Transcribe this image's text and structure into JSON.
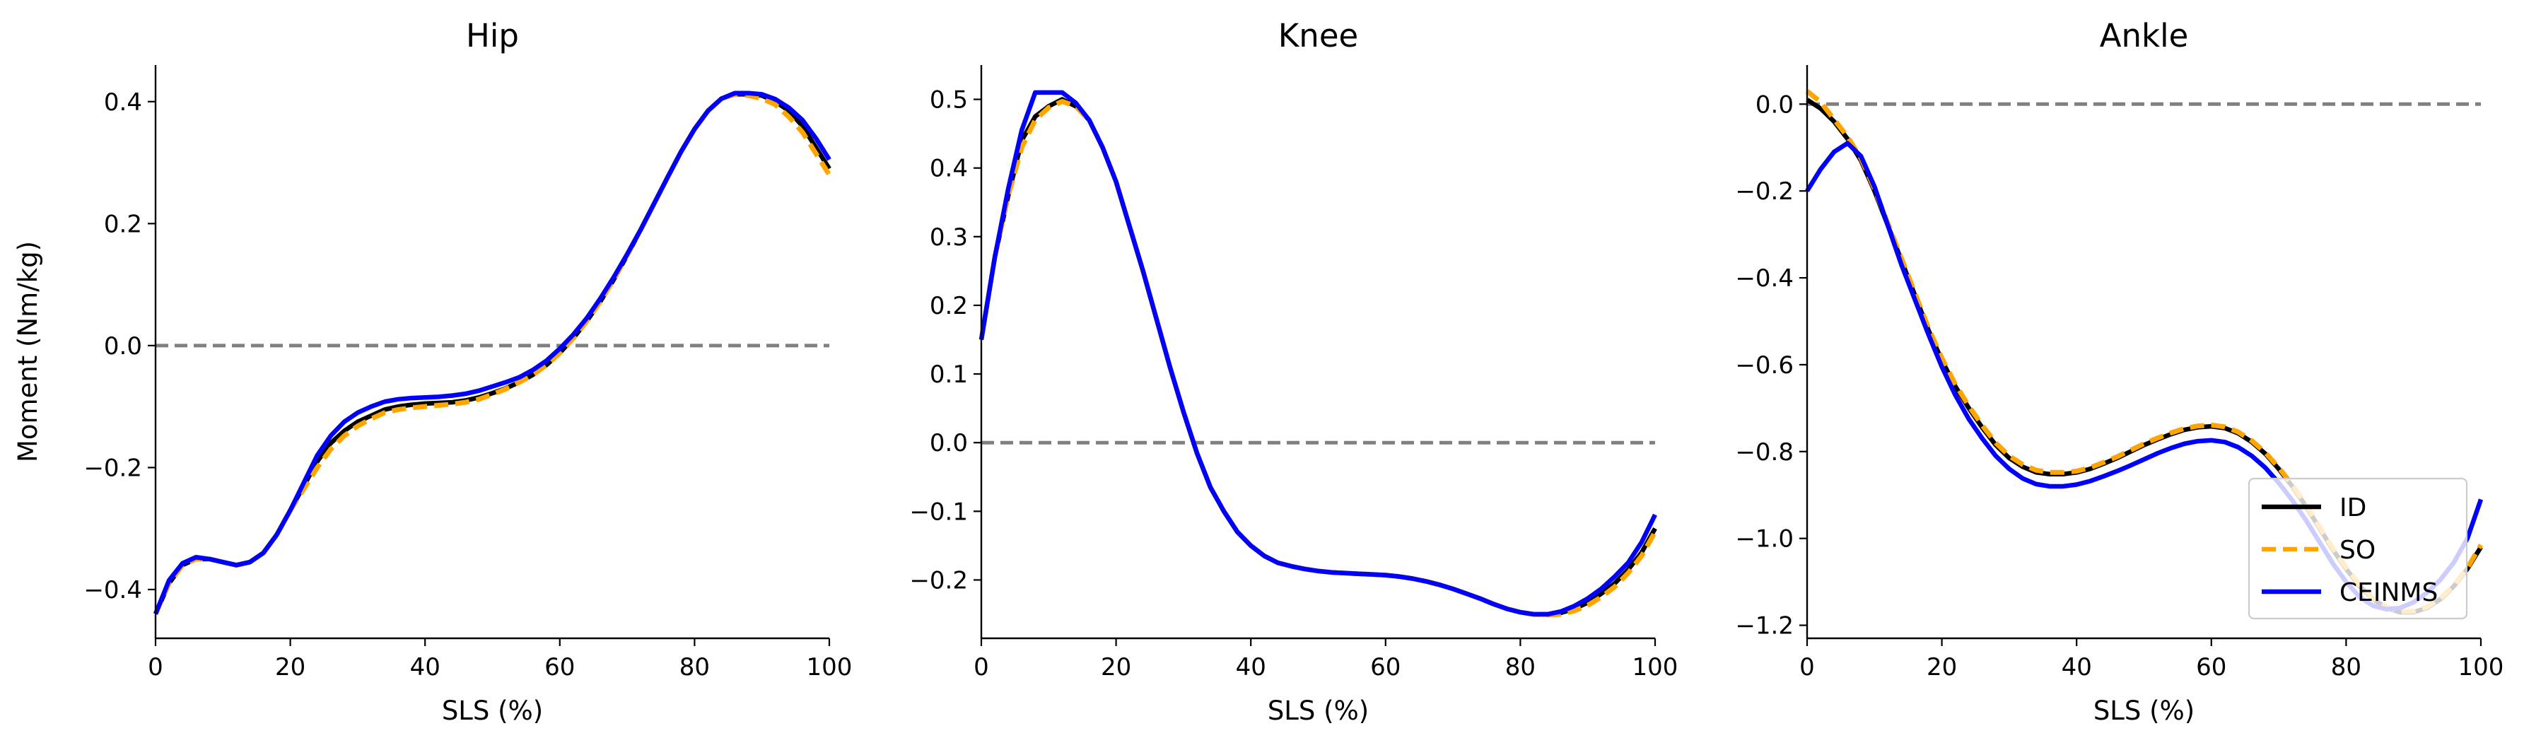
{
  "chart_data": [
    {
      "type": "line",
      "title": "Hip",
      "xlabel": "SLS (%)",
      "ylabel": "Moment (Nm/kg)",
      "xlim": [
        0,
        100
      ],
      "ylim": [
        -0.48,
        0.46
      ],
      "xticks": [
        0,
        20,
        40,
        60,
        80,
        100
      ],
      "yticks": [
        -0.4,
        -0.2,
        0.0,
        0.2,
        0.4
      ],
      "ytick_labels": [
        "−0.4",
        "−0.2",
        "0.0",
        "0.2",
        "0.4"
      ],
      "reference_line_y": 0.0,
      "series": [
        {
          "name": "ID",
          "color": "#000000",
          "style": "solid",
          "x": [
            0,
            2,
            4,
            6,
            8,
            10,
            12,
            14,
            16,
            18,
            20,
            22,
            24,
            26,
            28,
            30,
            32,
            34,
            36,
            38,
            40,
            42,
            44,
            46,
            48,
            50,
            52,
            54,
            56,
            58,
            60,
            62,
            64,
            66,
            68,
            70,
            72,
            74,
            76,
            78,
            80,
            82,
            84,
            86,
            88,
            90,
            92,
            94,
            96,
            98,
            100
          ],
          "y": [
            -0.44,
            -0.39,
            -0.36,
            -0.35,
            -0.35,
            -0.355,
            -0.36,
            -0.355,
            -0.34,
            -0.31,
            -0.27,
            -0.23,
            -0.19,
            -0.16,
            -0.14,
            -0.125,
            -0.115,
            -0.105,
            -0.1,
            -0.097,
            -0.095,
            -0.094,
            -0.093,
            -0.09,
            -0.085,
            -0.078,
            -0.07,
            -0.06,
            -0.048,
            -0.032,
            -0.012,
            0.012,
            0.04,
            0.072,
            0.108,
            0.148,
            0.19,
            0.233,
            0.276,
            0.318,
            0.355,
            0.385,
            0.405,
            0.412,
            0.412,
            0.41,
            0.4,
            0.385,
            0.36,
            0.325,
            0.29
          ]
        },
        {
          "name": "SO",
          "color": "#FFA500",
          "style": "dashed",
          "x": [
            0,
            2,
            4,
            6,
            8,
            10,
            12,
            14,
            16,
            18,
            20,
            22,
            24,
            26,
            28,
            30,
            32,
            34,
            36,
            38,
            40,
            42,
            44,
            46,
            48,
            50,
            52,
            54,
            56,
            58,
            60,
            62,
            64,
            66,
            68,
            70,
            72,
            74,
            76,
            78,
            80,
            82,
            84,
            86,
            88,
            90,
            92,
            94,
            96,
            98,
            100
          ],
          "y": [
            -0.44,
            -0.39,
            -0.36,
            -0.35,
            -0.35,
            -0.355,
            -0.36,
            -0.355,
            -0.34,
            -0.31,
            -0.27,
            -0.235,
            -0.2,
            -0.17,
            -0.148,
            -0.132,
            -0.12,
            -0.11,
            -0.105,
            -0.102,
            -0.1,
            -0.098,
            -0.096,
            -0.093,
            -0.088,
            -0.08,
            -0.071,
            -0.06,
            -0.048,
            -0.032,
            -0.012,
            0.012,
            0.04,
            0.072,
            0.108,
            0.148,
            0.19,
            0.233,
            0.276,
            0.318,
            0.355,
            0.385,
            0.405,
            0.412,
            0.41,
            0.405,
            0.395,
            0.375,
            0.35,
            0.315,
            0.28
          ]
        },
        {
          "name": "CEINMS",
          "color": "#0000FF",
          "style": "solid",
          "x": [
            0,
            2,
            4,
            6,
            8,
            10,
            12,
            14,
            16,
            18,
            20,
            22,
            24,
            26,
            28,
            30,
            32,
            34,
            36,
            38,
            40,
            42,
            44,
            46,
            48,
            50,
            52,
            54,
            56,
            58,
            60,
            62,
            64,
            66,
            68,
            70,
            72,
            74,
            76,
            78,
            80,
            82,
            84,
            86,
            88,
            90,
            92,
            94,
            96,
            98,
            100
          ],
          "y": [
            -0.44,
            -0.385,
            -0.357,
            -0.347,
            -0.35,
            -0.355,
            -0.36,
            -0.355,
            -0.34,
            -0.31,
            -0.27,
            -0.225,
            -0.18,
            -0.148,
            -0.125,
            -0.11,
            -0.1,
            -0.092,
            -0.088,
            -0.086,
            -0.085,
            -0.084,
            -0.082,
            -0.079,
            -0.074,
            -0.067,
            -0.06,
            -0.052,
            -0.04,
            -0.025,
            -0.005,
            0.018,
            0.045,
            0.077,
            0.112,
            0.15,
            0.19,
            0.233,
            0.276,
            0.318,
            0.355,
            0.385,
            0.405,
            0.414,
            0.414,
            0.412,
            0.404,
            0.39,
            0.37,
            0.34,
            0.305
          ]
        }
      ]
    },
    {
      "type": "line",
      "title": "Knee",
      "xlabel": "SLS (%)",
      "ylabel": "",
      "xlim": [
        0,
        100
      ],
      "ylim": [
        -0.285,
        0.55
      ],
      "xticks": [
        0,
        20,
        40,
        60,
        80,
        100
      ],
      "yticks": [
        -0.2,
        -0.1,
        0.0,
        0.1,
        0.2,
        0.3,
        0.4,
        0.5
      ],
      "ytick_labels": [
        "−0.2",
        "−0.1",
        "0.0",
        "0.1",
        "0.2",
        "0.3",
        "0.4",
        "0.5"
      ],
      "reference_line_y": 0.0,
      "series": [
        {
          "name": "ID",
          "color": "#000000",
          "style": "solid",
          "x": [
            0,
            2,
            4,
            6,
            8,
            10,
            12,
            14,
            16,
            18,
            20,
            22,
            24,
            26,
            28,
            30,
            32,
            34,
            36,
            38,
            40,
            42,
            44,
            46,
            48,
            50,
            52,
            54,
            56,
            58,
            60,
            62,
            64,
            66,
            68,
            70,
            72,
            74,
            76,
            78,
            80,
            82,
            84,
            86,
            88,
            90,
            92,
            94,
            96,
            98,
            100
          ],
          "y": [
            0.15,
            0.27,
            0.36,
            0.44,
            0.475,
            0.49,
            0.5,
            0.49,
            0.47,
            0.43,
            0.38,
            0.315,
            0.25,
            0.18,
            0.11,
            0.045,
            -0.015,
            -0.065,
            -0.1,
            -0.13,
            -0.15,
            -0.165,
            -0.175,
            -0.18,
            -0.184,
            -0.187,
            -0.189,
            -0.19,
            -0.191,
            -0.192,
            -0.193,
            -0.195,
            -0.198,
            -0.202,
            -0.207,
            -0.213,
            -0.22,
            -0.227,
            -0.235,
            -0.242,
            -0.247,
            -0.25,
            -0.25,
            -0.248,
            -0.242,
            -0.233,
            -0.22,
            -0.205,
            -0.185,
            -0.16,
            -0.125
          ]
        },
        {
          "name": "SO",
          "color": "#FFA500",
          "style": "dashed",
          "x": [
            0,
            2,
            4,
            6,
            8,
            10,
            12,
            14,
            16,
            18,
            20,
            22,
            24,
            26,
            28,
            30,
            32,
            34,
            36,
            38,
            40,
            42,
            44,
            46,
            48,
            50,
            52,
            54,
            56,
            58,
            60,
            62,
            64,
            66,
            68,
            70,
            72,
            74,
            76,
            78,
            80,
            82,
            84,
            86,
            88,
            90,
            92,
            94,
            96,
            98,
            100
          ],
          "y": [
            0.15,
            0.27,
            0.36,
            0.43,
            0.47,
            0.488,
            0.497,
            0.49,
            0.47,
            0.43,
            0.38,
            0.315,
            0.25,
            0.18,
            0.11,
            0.045,
            -0.015,
            -0.065,
            -0.1,
            -0.13,
            -0.15,
            -0.165,
            -0.175,
            -0.18,
            -0.184,
            -0.187,
            -0.189,
            -0.19,
            -0.191,
            -0.192,
            -0.193,
            -0.195,
            -0.198,
            -0.202,
            -0.207,
            -0.213,
            -0.22,
            -0.227,
            -0.235,
            -0.242,
            -0.247,
            -0.25,
            -0.251,
            -0.25,
            -0.245,
            -0.237,
            -0.225,
            -0.21,
            -0.19,
            -0.165,
            -0.13
          ]
        },
        {
          "name": "CEINMS",
          "color": "#0000FF",
          "style": "solid",
          "x": [
            0,
            2,
            4,
            6,
            8,
            10,
            12,
            14,
            16,
            18,
            20,
            22,
            24,
            26,
            28,
            30,
            32,
            34,
            36,
            38,
            40,
            42,
            44,
            46,
            48,
            50,
            52,
            54,
            56,
            58,
            60,
            62,
            64,
            66,
            68,
            70,
            72,
            74,
            76,
            78,
            80,
            82,
            84,
            86,
            88,
            90,
            92,
            94,
            96,
            98,
            100
          ],
          "y": [
            0.15,
            0.27,
            0.37,
            0.455,
            0.51,
            0.51,
            0.51,
            0.495,
            0.47,
            0.43,
            0.38,
            0.315,
            0.25,
            0.18,
            0.11,
            0.045,
            -0.015,
            -0.065,
            -0.1,
            -0.13,
            -0.15,
            -0.165,
            -0.175,
            -0.18,
            -0.184,
            -0.187,
            -0.189,
            -0.19,
            -0.191,
            -0.192,
            -0.193,
            -0.195,
            -0.198,
            -0.202,
            -0.207,
            -0.213,
            -0.22,
            -0.227,
            -0.235,
            -0.242,
            -0.247,
            -0.25,
            -0.25,
            -0.246,
            -0.238,
            -0.227,
            -0.213,
            -0.195,
            -0.175,
            -0.145,
            -0.105
          ]
        }
      ]
    },
    {
      "type": "line",
      "title": "Ankle",
      "xlabel": "SLS (%)",
      "ylabel": "",
      "xlim": [
        0,
        100
      ],
      "ylim": [
        -1.23,
        0.09
      ],
      "xticks": [
        0,
        20,
        40,
        60,
        80,
        100
      ],
      "yticks": [
        -1.2,
        -1.0,
        -0.8,
        -0.6,
        -0.4,
        -0.2,
        0.0
      ],
      "ytick_labels": [
        "−1.2",
        "−1.0",
        "−0.8",
        "−0.6",
        "−0.4",
        "−0.2",
        "0.0"
      ],
      "reference_line_y": 0.0,
      "legend_position": "bottom-right",
      "series": [
        {
          "name": "ID",
          "color": "#000000",
          "style": "solid",
          "x": [
            0,
            2,
            4,
            6,
            8,
            10,
            12,
            14,
            16,
            18,
            20,
            22,
            24,
            26,
            28,
            30,
            32,
            34,
            36,
            38,
            40,
            42,
            44,
            46,
            48,
            50,
            52,
            54,
            56,
            58,
            60,
            62,
            64,
            66,
            68,
            70,
            72,
            74,
            76,
            78,
            80,
            82,
            84,
            86,
            88,
            90,
            92,
            94,
            96,
            98,
            100
          ],
          "y": [
            0.01,
            -0.01,
            -0.04,
            -0.08,
            -0.13,
            -0.2,
            -0.28,
            -0.36,
            -0.44,
            -0.52,
            -0.59,
            -0.65,
            -0.7,
            -0.745,
            -0.785,
            -0.815,
            -0.835,
            -0.848,
            -0.852,
            -0.852,
            -0.848,
            -0.84,
            -0.828,
            -0.815,
            -0.8,
            -0.785,
            -0.772,
            -0.76,
            -0.75,
            -0.744,
            -0.742,
            -0.746,
            -0.758,
            -0.778,
            -0.805,
            -0.84,
            -0.88,
            -0.925,
            -0.975,
            -1.025,
            -1.07,
            -1.11,
            -1.14,
            -1.16,
            -1.17,
            -1.17,
            -1.16,
            -1.14,
            -1.11,
            -1.07,
            -1.02
          ]
        },
        {
          "name": "SO",
          "color": "#FFA500",
          "style": "dashed",
          "x": [
            0,
            2,
            4,
            6,
            8,
            10,
            12,
            14,
            16,
            18,
            20,
            22,
            24,
            26,
            28,
            30,
            32,
            34,
            36,
            38,
            40,
            42,
            44,
            46,
            48,
            50,
            52,
            54,
            56,
            58,
            60,
            62,
            64,
            66,
            68,
            70,
            72,
            74,
            76,
            78,
            80,
            82,
            84,
            86,
            88,
            90,
            92,
            94,
            96,
            98,
            100
          ],
          "y": [
            0.03,
            0.005,
            -0.035,
            -0.075,
            -0.125,
            -0.195,
            -0.275,
            -0.355,
            -0.435,
            -0.515,
            -0.585,
            -0.645,
            -0.695,
            -0.74,
            -0.78,
            -0.81,
            -0.83,
            -0.843,
            -0.848,
            -0.848,
            -0.845,
            -0.837,
            -0.825,
            -0.812,
            -0.797,
            -0.782,
            -0.769,
            -0.757,
            -0.747,
            -0.741,
            -0.739,
            -0.743,
            -0.755,
            -0.775,
            -0.802,
            -0.837,
            -0.877,
            -0.922,
            -0.972,
            -1.022,
            -1.067,
            -1.107,
            -1.138,
            -1.158,
            -1.168,
            -1.168,
            -1.158,
            -1.138,
            -1.108,
            -1.068,
            -1.015
          ]
        },
        {
          "name": "CEINMS",
          "color": "#0000FF",
          "style": "solid",
          "x": [
            0,
            2,
            4,
            6,
            8,
            10,
            12,
            14,
            16,
            18,
            20,
            22,
            24,
            26,
            28,
            30,
            32,
            34,
            36,
            38,
            40,
            42,
            44,
            46,
            48,
            50,
            52,
            54,
            56,
            58,
            60,
            62,
            64,
            66,
            68,
            70,
            72,
            74,
            76,
            78,
            80,
            82,
            84,
            86,
            88,
            90,
            92,
            94,
            96,
            98,
            100
          ],
          "y": [
            -0.2,
            -0.15,
            -0.11,
            -0.09,
            -0.12,
            -0.19,
            -0.28,
            -0.37,
            -0.45,
            -0.53,
            -0.605,
            -0.67,
            -0.725,
            -0.77,
            -0.81,
            -0.84,
            -0.862,
            -0.875,
            -0.88,
            -0.88,
            -0.876,
            -0.868,
            -0.857,
            -0.845,
            -0.832,
            -0.818,
            -0.804,
            -0.792,
            -0.782,
            -0.776,
            -0.774,
            -0.778,
            -0.79,
            -0.81,
            -0.837,
            -0.872,
            -0.912,
            -0.957,
            -1.007,
            -1.057,
            -1.1,
            -1.135,
            -1.155,
            -1.163,
            -1.16,
            -1.147,
            -1.125,
            -1.095,
            -1.055,
            -1.0,
            -0.91
          ]
        }
      ]
    }
  ]
}
